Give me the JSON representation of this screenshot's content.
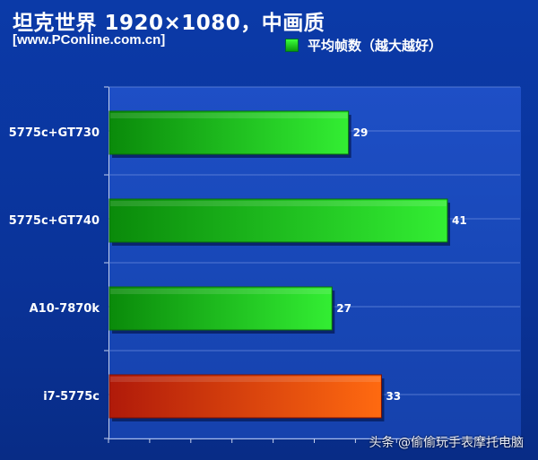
{
  "title": "坦克世界 1920×1080，中画质",
  "source": "[www.PConline.com.cn]",
  "legend": {
    "label": "平均帧数（越大越好）",
    "color": "#22cc22"
  },
  "watermark": "头条 @偷偷玩手表摩托电脑",
  "chart_data": {
    "type": "bar",
    "orientation": "horizontal",
    "categories": [
      "5775c+GT730",
      "5775c+GT740",
      "A10-7870k",
      "i7-5775c"
    ],
    "values": [
      29,
      41,
      27,
      33
    ],
    "series": [
      {
        "name": "平均帧数（越大越好）",
        "values": [
          29,
          41,
          27,
          33
        ]
      }
    ],
    "colors": [
      "#22cc22",
      "#22cc22",
      "#22cc22",
      "#e84a10"
    ],
    "xlim": [
      0,
      50
    ],
    "grid": true,
    "legend_position": "top-right"
  }
}
